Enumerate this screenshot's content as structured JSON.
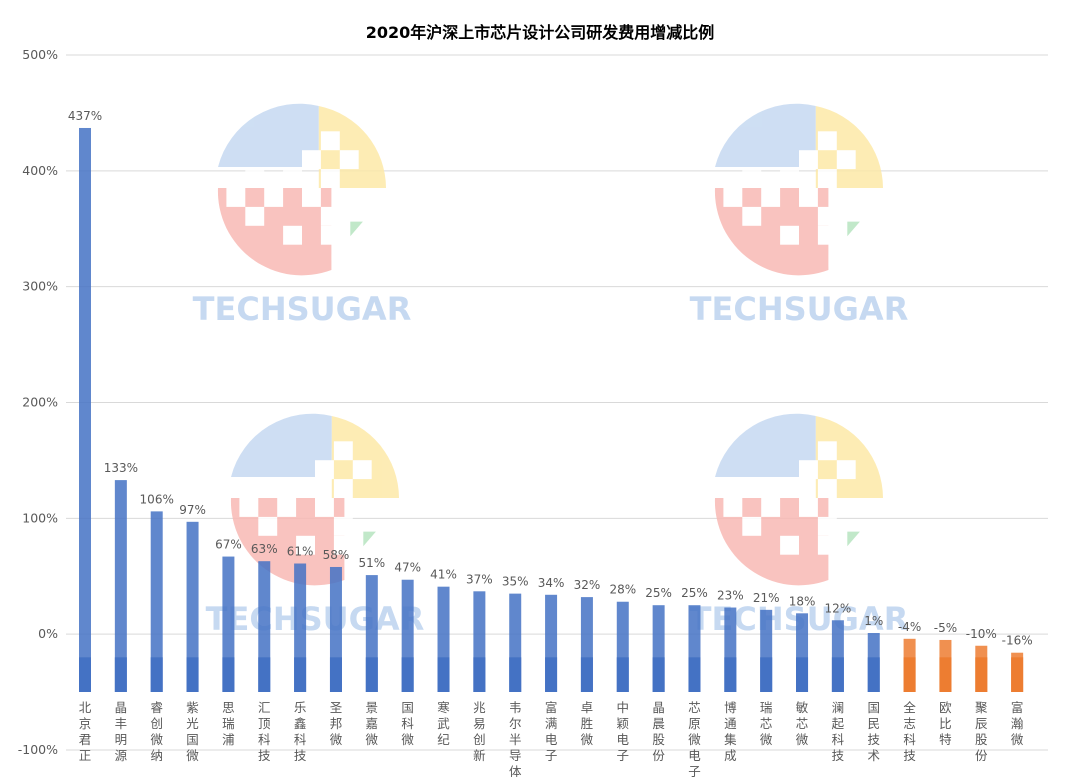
{
  "chart_data": {
    "type": "bar",
    "title": "2020年沪深上市芯片设计公司研发费用增减比例",
    "xlabel": "",
    "ylabel": "",
    "ylim": [
      -100,
      500
    ],
    "yticks": [
      -100,
      0,
      100,
      200,
      300,
      400,
      500
    ],
    "ytick_labels": [
      "-100%",
      "0%",
      "100%",
      "200%",
      "300%",
      "400%",
      "500%"
    ],
    "grid": true,
    "legend": "none",
    "categories": [
      "北京君正",
      "晶丰明源",
      "睿创微纳",
      "紫光国微",
      "思瑞浦",
      "汇顶科技",
      "乐鑫科技",
      "圣邦微",
      "景嘉微",
      "国科微",
      "寒武纪",
      "兆易创新",
      "韦尔半导体",
      "富满电子",
      "卓胜微",
      "中颖电子",
      "晶晨股份",
      "芯原微电子",
      "博通集成",
      "瑞芯微",
      "敏芯微",
      "澜起科技",
      "国民技术",
      "全志科技",
      "欧比特",
      "聚辰股份",
      "富瀚微"
    ],
    "values": [
      437,
      133,
      106,
      97,
      67,
      63,
      61,
      58,
      51,
      47,
      41,
      37,
      35,
      34,
      32,
      28,
      25,
      25,
      23,
      21,
      18,
      12,
      1,
      -4,
      -5,
      -10,
      -16
    ],
    "data_labels": [
      "437%",
      "133%",
      "106%",
      "97%",
      "67%",
      "63%",
      "61%",
      "58%",
      "51%",
      "47%",
      "41%",
      "37%",
      "35%",
      "34%",
      "32%",
      "28%",
      "25%",
      "25%",
      "23%",
      "21%",
      "18%",
      "12%",
      "1%",
      "-4%",
      "-5%",
      "-10%",
      "-16%"
    ],
    "colors": {
      "positive": "#4472c4",
      "negative": "#ed7d31",
      "title": "#000000",
      "axis_text": "#595959",
      "grid": "#d9d9d9"
    }
  },
  "watermark": {
    "text": "TECHSUGAR",
    "colors": {
      "blue": "#c6d9f1",
      "yellow": "#fde9a8",
      "red": "#f8b9b4",
      "green": "#b7e4c0",
      "text": "#c6d9f1"
    }
  }
}
